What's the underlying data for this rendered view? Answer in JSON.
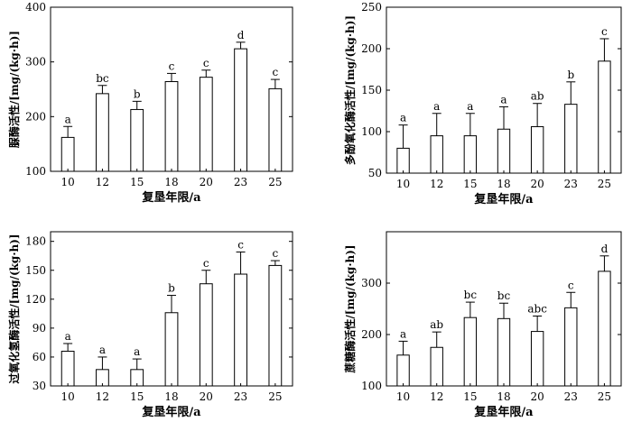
{
  "chart_data": [
    {
      "type": "bar",
      "ylabel": "脲酶活性/[mg/(kg·h)]",
      "xlabel": "复垦年限/a",
      "categories": [
        "10",
        "12",
        "15",
        "18",
        "20",
        "23",
        "25"
      ],
      "values": [
        162,
        242,
        213,
        264,
        272,
        324,
        251
      ],
      "errors": [
        20,
        15,
        15,
        15,
        13,
        12,
        17
      ],
      "letters": [
        "a",
        "bc",
        "b",
        "c",
        "c",
        "d",
        "c"
      ],
      "ylim": [
        100,
        400
      ],
      "yticks": [
        100,
        200,
        300,
        400
      ]
    },
    {
      "type": "bar",
      "ylabel": "多酚氧化酶活性/[mg/(kg·h)]",
      "xlabel": "复垦年限/a",
      "categories": [
        "10",
        "12",
        "15",
        "18",
        "20",
        "23",
        "25"
      ],
      "values": [
        80,
        95,
        95,
        103,
        106,
        133,
        185
      ],
      "errors": [
        28,
        27,
        27,
        27,
        28,
        27,
        27
      ],
      "letters": [
        "a",
        "a",
        "a",
        "a",
        "ab",
        "b",
        "c"
      ],
      "ylim": [
        50,
        250
      ],
      "yticks": [
        50,
        100,
        150,
        200,
        250
      ]
    },
    {
      "type": "bar",
      "ylabel": "过氧化氢酶活性/[mg/(kg·h)]",
      "xlabel": "复垦年限/a",
      "categories": [
        "10",
        "12",
        "15",
        "18",
        "20",
        "23",
        "25"
      ],
      "values": [
        66,
        47,
        47,
        106,
        136,
        146,
        155
      ],
      "errors": [
        8,
        13,
        11,
        18,
        14,
        23,
        5
      ],
      "letters": [
        "a",
        "a",
        "a",
        "b",
        "c",
        "c",
        "c"
      ],
      "ylim": [
        30,
        190
      ],
      "yticks": [
        30,
        60,
        90,
        120,
        150,
        180
      ]
    },
    {
      "type": "bar",
      "ylabel": "蔗糖酶活性/[mg/(kg·h)]",
      "xlabel": "复垦年限/a",
      "categories": [
        "10",
        "12",
        "15",
        "18",
        "20",
        "23",
        "25"
      ],
      "values": [
        160,
        175,
        233,
        231,
        206,
        252,
        323
      ],
      "errors": [
        27,
        30,
        30,
        30,
        30,
        30,
        30
      ],
      "letters": [
        "a",
        "ab",
        "bc",
        "bc",
        "abc",
        "c",
        "d"
      ],
      "ylim": [
        100,
        400
      ],
      "yticks": [
        100,
        200,
        300
      ]
    }
  ]
}
